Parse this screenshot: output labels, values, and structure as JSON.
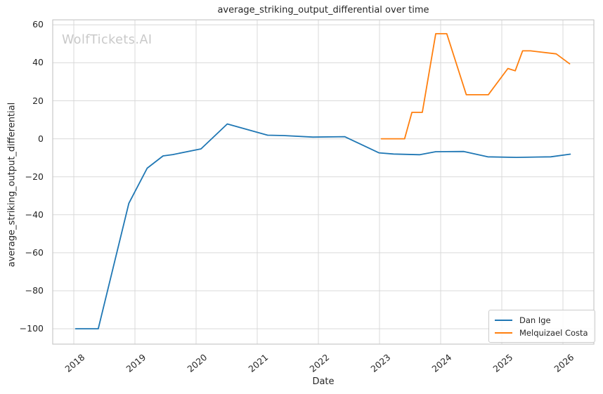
{
  "watermark": "WolfTickets.AI",
  "chart_data": {
    "type": "line",
    "title": "average_striking_output_differential over time",
    "xlabel": "Date",
    "ylabel": "average_striking_output_differential",
    "xlim": [
      2017.655,
      2026.506
    ],
    "ylim": [
      -108.1,
      62.6
    ],
    "grid": true,
    "legend_position": "lower right",
    "xticks": {
      "values": [
        2018,
        2019,
        2020,
        2021,
        2022,
        2023,
        2024,
        2025,
        2026
      ],
      "labels": [
        "2018",
        "2019",
        "2020",
        "2021",
        "2022",
        "2023",
        "2024",
        "2025",
        "2026"
      ]
    },
    "yticks": {
      "values": [
        60,
        40,
        20,
        0,
        -20,
        -40,
        -60,
        -80,
        -100
      ],
      "labels": [
        "60",
        "40",
        "20",
        "0",
        "−20",
        "−40",
        "−60",
        "−80",
        "−100"
      ]
    },
    "series": [
      {
        "name": "Dan Ige",
        "color": "#1f77b4",
        "points": [
          [
            2018.03,
            -100
          ],
          [
            2018.4,
            -100
          ],
          [
            2018.9,
            -34
          ],
          [
            2019.2,
            -15.5
          ],
          [
            2019.46,
            -9.0
          ],
          [
            2019.62,
            -8.3
          ],
          [
            2020.08,
            -5.3
          ],
          [
            2020.51,
            7.8
          ],
          [
            2021.17,
            1.9
          ],
          [
            2021.43,
            1.7
          ],
          [
            2021.91,
            0.9
          ],
          [
            2022.43,
            1.1
          ],
          [
            2022.99,
            -7.4
          ],
          [
            2023.23,
            -8.0
          ],
          [
            2023.66,
            -8.4
          ],
          [
            2023.92,
            -6.8
          ],
          [
            2024.38,
            -6.7
          ],
          [
            2024.77,
            -9.5
          ],
          [
            2025.24,
            -9.8
          ],
          [
            2025.8,
            -9.5
          ],
          [
            2026.12,
            -8.1
          ]
        ]
      },
      {
        "name": "Melquizael Costa",
        "color": "#ff7f0e",
        "points": [
          [
            2023.03,
            0
          ],
          [
            2023.41,
            0
          ],
          [
            2023.53,
            13.9
          ],
          [
            2023.7,
            13.9
          ],
          [
            2023.92,
            55.3
          ],
          [
            2024.1,
            55.3
          ],
          [
            2024.42,
            23.2
          ],
          [
            2024.78,
            23.2
          ],
          [
            2025.1,
            37.0
          ],
          [
            2025.22,
            35.8
          ],
          [
            2025.34,
            46.3
          ],
          [
            2025.47,
            46.3
          ],
          [
            2025.89,
            44.7
          ],
          [
            2026.11,
            39.5
          ]
        ]
      }
    ]
  },
  "colors": {
    "grid": "#d9d9d9",
    "spine": "#c8c8c8",
    "text": "#262626",
    "watermark": "#c9c9c9"
  }
}
